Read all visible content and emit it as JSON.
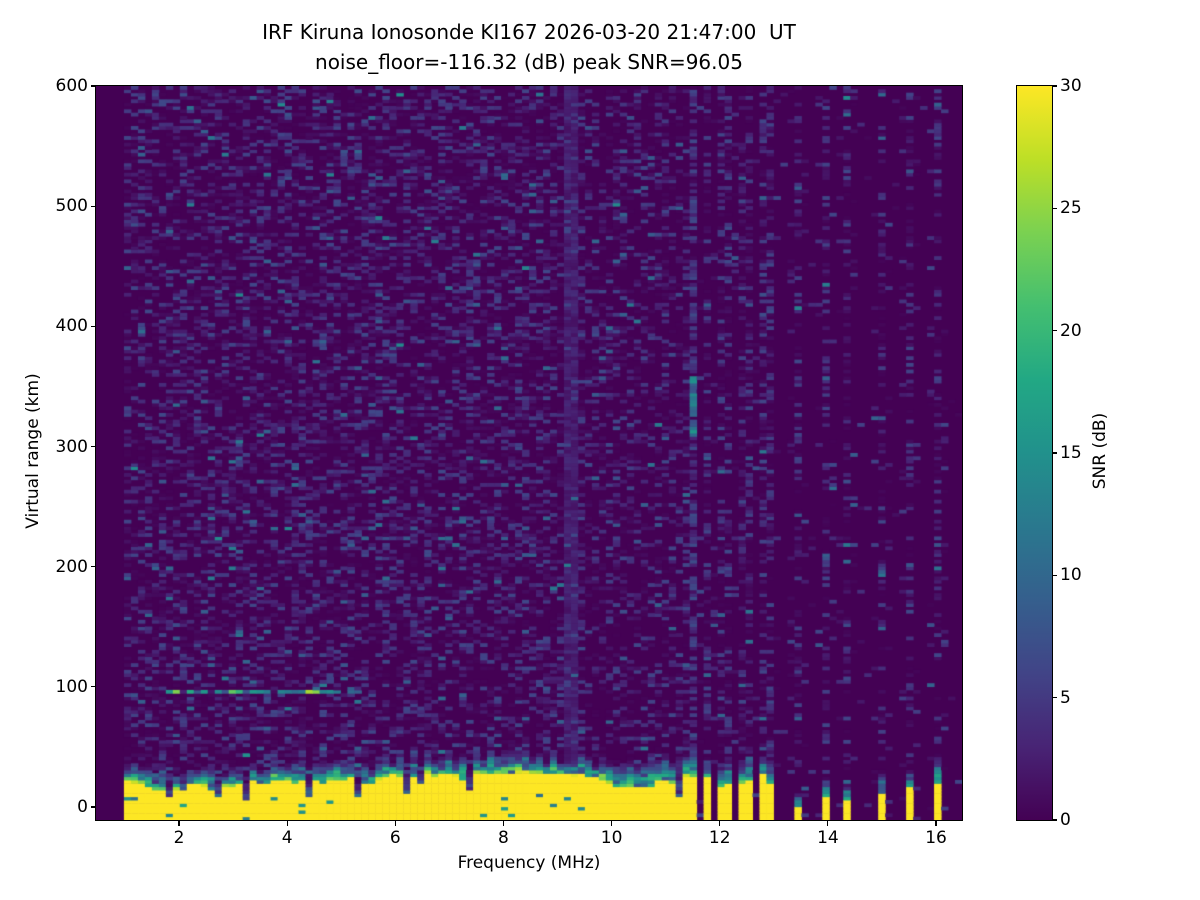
{
  "title_line1": "IRF Kiruna Ionosonde KI167 2026-03-20 21:47:00  UT",
  "title_line2": "noise_floor=-116.32 (dB) peak SNR=96.05",
  "chart_data": {
    "type": "heatmap",
    "title": "IRF Kiruna Ionosonde KI167 2026-03-20 21:47:00 UT noise_floor=-116.32 (dB) peak SNR=96.05",
    "xlabel": "Frequency (MHz)",
    "ylabel": "Virtual range (km)",
    "colorbar_label": "SNR (dB)",
    "xlim": [
      0.465,
      16.48
    ],
    "ylim": [
      -10.8,
      600
    ],
    "clim": [
      0,
      30
    ],
    "x_ticks": [
      2,
      4,
      6,
      8,
      10,
      12,
      14,
      16
    ],
    "y_ticks": [
      0,
      100,
      200,
      300,
      400,
      500,
      600
    ],
    "colorbar_ticks": [
      0,
      5,
      10,
      15,
      20,
      25,
      30
    ],
    "colormap": "viridis",
    "colormap_stops": [
      {
        "t": 0.0,
        "c": "#440154"
      },
      {
        "t": 0.1,
        "c": "#482475"
      },
      {
        "t": 0.2,
        "c": "#414487"
      },
      {
        "t": 0.3,
        "c": "#355f8d"
      },
      {
        "t": 0.4,
        "c": "#2a788e"
      },
      {
        "t": 0.5,
        "c": "#21918c"
      },
      {
        "t": 0.6,
        "c": "#22a884"
      },
      {
        "t": 0.7,
        "c": "#44bf70"
      },
      {
        "t": 0.8,
        "c": "#7ad151"
      },
      {
        "t": 0.9,
        "c": "#bddf26"
      },
      {
        "t": 1.0,
        "c": "#fde725"
      }
    ],
    "background_color": "#440154",
    "grid": false,
    "features": {
      "data_start_mhz": 0.93,
      "noise_speckle_snr_db": [
        0,
        8
      ],
      "ground_clutter": {
        "freq_range_mhz": [
          0.93,
          11.6
        ],
        "snr_db": 30,
        "top_km_range": [
          15,
          30
        ],
        "cap_top_km": 45
      },
      "e_region_echo": {
        "range_km": 96,
        "freq_range_mhz": [
          1.61,
          5.35
        ],
        "snr_db_range": [
          7,
          27
        ],
        "bright_spot_mhz": 4.37,
        "style": "dashed-horizontal"
      },
      "interference_line_mhz": 9.2,
      "f_region_streak": {
        "freq_mhz": 11.55,
        "range_km": [
          308,
          362
        ],
        "snr_db_range": [
          7,
          16
        ]
      },
      "tx_columns_cluster_mhz": [
        11.77,
        11.98,
        12.18,
        12.38,
        12.58,
        12.78,
        12.99
      ],
      "tx_columns_isolated_mhz": [
        13.47,
        13.95,
        14.41,
        14.95,
        15.45,
        15.98
      ],
      "tx_columns_isolated_top_km": [
        1,
        7.5,
        7,
        11.6,
        16.6,
        21
      ],
      "notch_freqs_mhz": [
        1.85,
        2.78,
        3.22,
        4.42,
        5.28,
        6.25,
        7.32,
        11.3
      ]
    }
  }
}
